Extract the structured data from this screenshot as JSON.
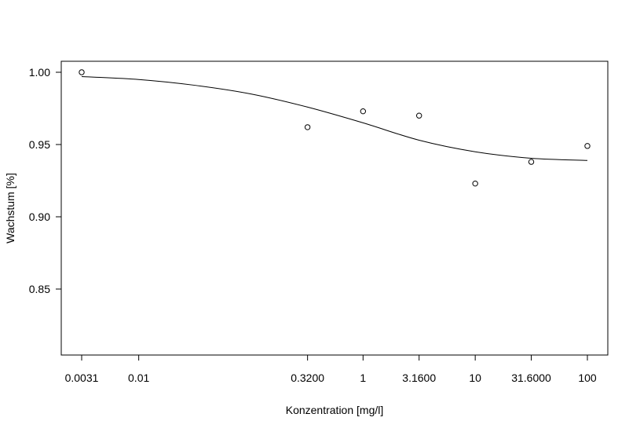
{
  "chart_data": {
    "type": "scatter",
    "title": "",
    "xlabel": "Konzentration [mg/l]",
    "ylabel": "Wachstum [%]",
    "x_scale": "log",
    "xlim": [
      0.0031,
      100
    ],
    "ylim": [
      0.81,
      1.005
    ],
    "x_ticks": [
      {
        "value": 0.0031,
        "label": "0.0031"
      },
      {
        "value": 0.01,
        "label": "0.01"
      },
      {
        "value": 0.32,
        "label": "0.3200"
      },
      {
        "value": 1,
        "label": "1"
      },
      {
        "value": 3.16,
        "label": "3.1600"
      },
      {
        "value": 10,
        "label": "10"
      },
      {
        "value": 31.6,
        "label": "31.6000"
      },
      {
        "value": 100,
        "label": "100"
      }
    ],
    "y_ticks": [
      {
        "value": 0.85,
        "label": "0.85"
      },
      {
        "value": 0.9,
        "label": "0.90"
      },
      {
        "value": 0.95,
        "label": "0.95"
      },
      {
        "value": 1.0,
        "label": "1.00"
      }
    ],
    "points": [
      {
        "x": 0.0031,
        "y": 1.0
      },
      {
        "x": 0.32,
        "y": 0.962
      },
      {
        "x": 1,
        "y": 0.973
      },
      {
        "x": 3.16,
        "y": 0.97
      },
      {
        "x": 10,
        "y": 0.923
      },
      {
        "x": 31.6,
        "y": 0.938
      },
      {
        "x": 100,
        "y": 0.949
      }
    ],
    "fit_curve": [
      {
        "x": 0.0031,
        "y": 0.997
      },
      {
        "x": 0.01,
        "y": 0.995
      },
      {
        "x": 0.0316,
        "y": 0.991
      },
      {
        "x": 0.1,
        "y": 0.985
      },
      {
        "x": 0.316,
        "y": 0.976
      },
      {
        "x": 1,
        "y": 0.965
      },
      {
        "x": 3.16,
        "y": 0.953
      },
      {
        "x": 10,
        "y": 0.945
      },
      {
        "x": 31.6,
        "y": 0.9405
      },
      {
        "x": 100,
        "y": 0.939
      }
    ],
    "grid": false,
    "legend": "none",
    "colors": {
      "points": "#000000",
      "curve": "#000000",
      "frame": "#000000"
    }
  }
}
